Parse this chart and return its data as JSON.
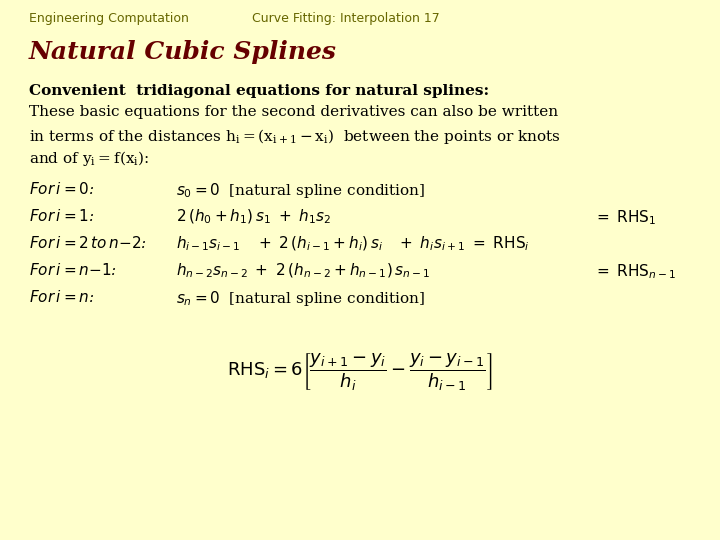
{
  "background_color": "#ffffcc",
  "header_left": "Engineering Computation",
  "header_right": "Curve Fitting: Interpolation 17",
  "header_color": "#666600",
  "header_fontsize": 9,
  "title": "Natural Cubic Splines",
  "title_color": "#660000",
  "title_fontsize": 18,
  "body_color": "#000000",
  "body_fontsize": 11,
  "eq_fontsize": 11
}
